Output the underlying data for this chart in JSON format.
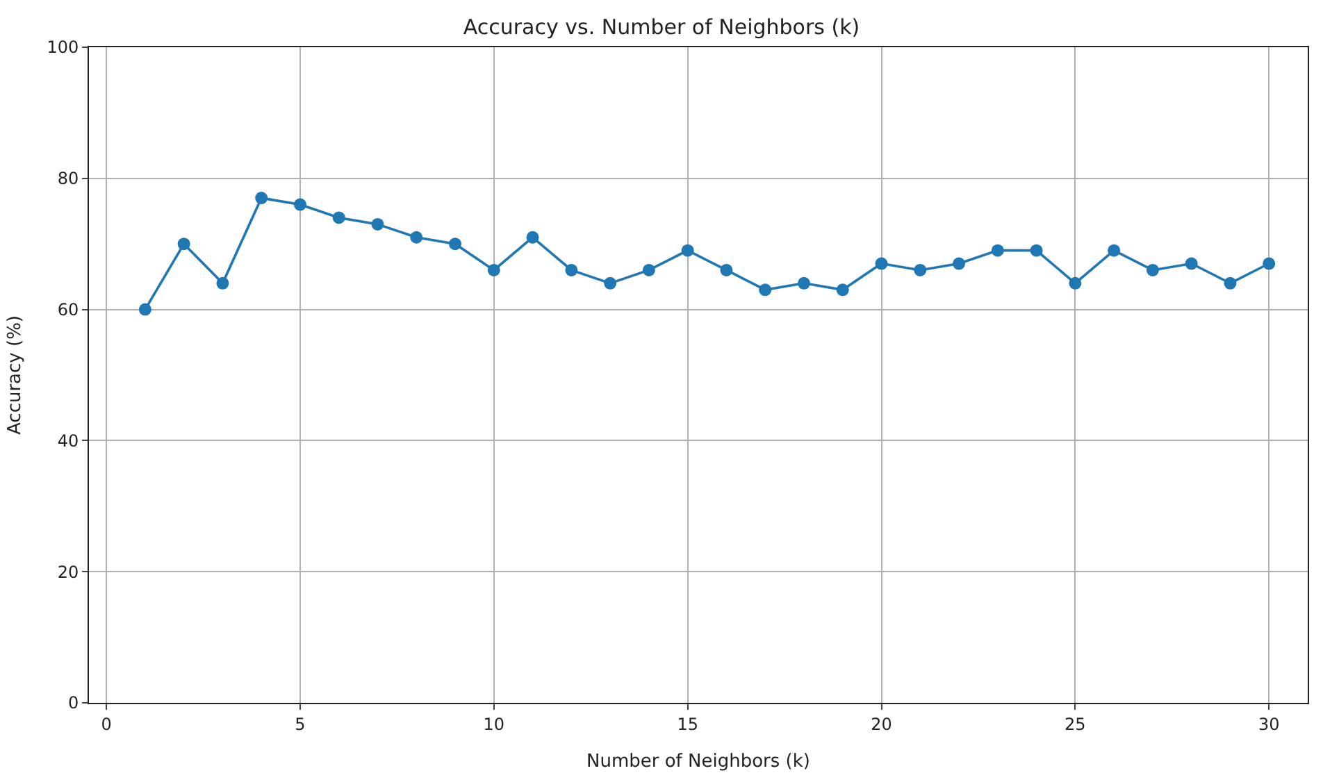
{
  "chart_data": {
    "type": "line",
    "title": "Accuracy vs. Number of Neighbors (k)",
    "xlabel": "Number of Neighbors (k)",
    "ylabel": "Accuracy (%)",
    "x": [
      1,
      2,
      3,
      4,
      5,
      6,
      7,
      8,
      9,
      10,
      11,
      12,
      13,
      14,
      15,
      16,
      17,
      18,
      19,
      20,
      21,
      22,
      23,
      24,
      25,
      26,
      27,
      28,
      29,
      30
    ],
    "series": [
      {
        "color": "#1f77b4",
        "values": [
          60,
          70,
          64,
          77,
          76,
          74,
          73,
          71,
          70,
          66,
          71,
          66,
          64,
          66,
          69,
          66,
          63,
          64,
          63,
          67,
          66,
          67,
          69,
          69,
          64,
          69,
          66,
          67,
          64,
          67
        ]
      }
    ],
    "xlim": [
      -0.45,
      31
    ],
    "xticks": [
      0,
      5,
      10,
      15,
      20,
      25,
      30
    ],
    "ylim": [
      0,
      100
    ],
    "yticks": [
      0,
      20,
      40,
      60,
      80,
      100
    ],
    "grid": true,
    "marker": "circle",
    "line_style": "solid",
    "legend": false
  }
}
